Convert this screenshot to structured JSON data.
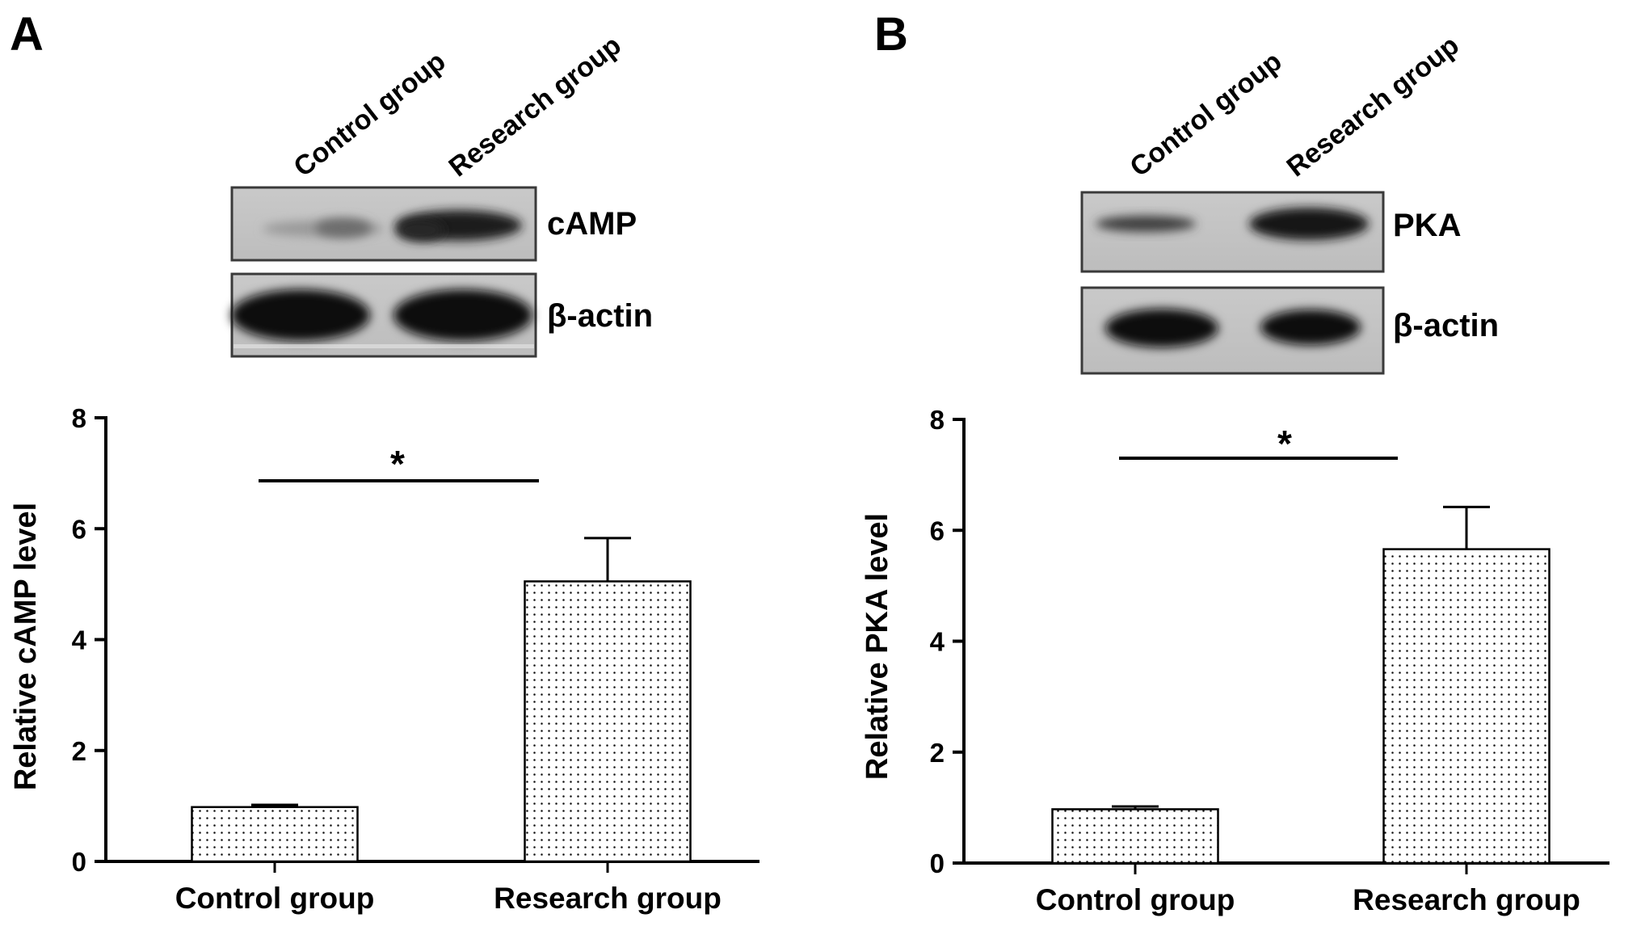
{
  "chart_data": [
    {
      "type": "bar",
      "panel": "A",
      "lanes": [
        "Control group",
        "Research group"
      ],
      "blots": [
        "cAMP",
        "β-actin"
      ],
      "categories": [
        "Control group",
        "Research group"
      ],
      "values": [
        0.98,
        5.05
      ],
      "errors": [
        0.04,
        0.78
      ],
      "ylabel": "Relative cAMP level",
      "ylim": [
        0,
        8
      ],
      "yticks": [
        0,
        2,
        4,
        6,
        8
      ],
      "significance": "*"
    },
    {
      "type": "bar",
      "panel": "B",
      "lanes": [
        "Control group",
        "Research group"
      ],
      "blots": [
        "PKA",
        "β-actin"
      ],
      "categories": [
        "Control group",
        "Research group"
      ],
      "values": [
        0.97,
        5.66
      ],
      "errors": [
        0.05,
        0.76
      ],
      "ylabel": "Relative PKA level",
      "ylim": [
        0,
        8
      ],
      "yticks": [
        0,
        2,
        4,
        6,
        8
      ],
      "significance": "*"
    }
  ]
}
